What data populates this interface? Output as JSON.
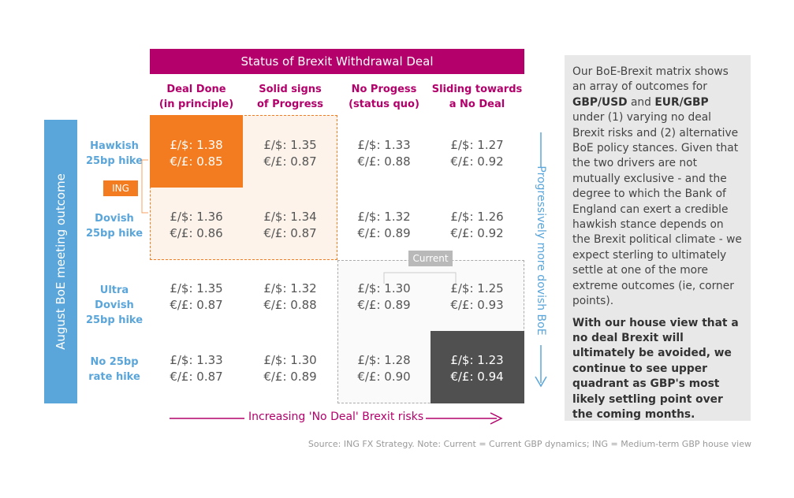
{
  "header": {
    "title": "Status of Brexit Withdrawal Deal"
  },
  "columns": [
    {
      "line1": "Deal Done",
      "line2": "(in principle)"
    },
    {
      "line1": "Solid signs",
      "line2": "of Progress"
    },
    {
      "line1": "No Progess",
      "line2": "(status quo)"
    },
    {
      "line1": "Sliding towards",
      "line2": "a No Deal"
    }
  ],
  "side_axis": {
    "label": "August BoE meeting outcome"
  },
  "rows": [
    {
      "line1": "Hawkish",
      "line2": "25bp hike"
    },
    {
      "line1": "Dovish",
      "line2": "25bp hike"
    },
    {
      "line1": "Ultra Dovish",
      "line2": "25bp hike"
    },
    {
      "line1": "No 25bp",
      "line2": "rate hike"
    }
  ],
  "chart_data": {
    "type": "table",
    "title": "Status of Brexit Withdrawal Deal",
    "column_labels": [
      "Deal Done (in principle)",
      "Solid signs of Progress",
      "No Progess (status quo)",
      "Sliding towards a No Deal"
    ],
    "row_labels": [
      "Hawkish 25bp hike",
      "Dovish 25bp hike",
      "Ultra Dovish 25bp hike",
      "No 25bp rate hike"
    ],
    "gbpusd_prefix": "£/$: ",
    "eurgbp_prefix": "€/£: ",
    "gbpusd": [
      [
        "1.38",
        "1.35",
        "1.33",
        "1.27"
      ],
      [
        "1.36",
        "1.34",
        "1.32",
        "1.26"
      ],
      [
        "1.35",
        "1.32",
        "1.30",
        "1.25"
      ],
      [
        "1.33",
        "1.30",
        "1.28",
        "1.23"
      ]
    ],
    "eurgbp": [
      [
        "0.85",
        "0.87",
        "0.88",
        "0.92"
      ],
      [
        "0.86",
        "0.87",
        "0.89",
        "0.92"
      ],
      [
        "0.87",
        "0.88",
        "0.89",
        "0.93"
      ],
      [
        "0.87",
        "0.89",
        "0.90",
        "0.94"
      ]
    ],
    "x_axis_label": "Increasing 'No Deal' Brexit risks",
    "y_axis_label": "August BoE meeting outcome",
    "right_axis_label": "Progressively more dovish BoE"
  },
  "markers": {
    "ing_label": "ING",
    "current_label": "Current"
  },
  "arrows": {
    "x_label": "Increasing 'No Deal' Brexit risks",
    "right_label": "Progressively more dovish BoE"
  },
  "commentary": {
    "p1_a": "Our BoE-Brexit matrix shows an array of outcomes for ",
    "p1_b": "GBP/USD",
    "p1_c": " and ",
    "p1_d": "EUR/GBP",
    "p1_e": " under (1) varying no deal Brexit risks and (2) alternative BoE policy stances. Given that the two drivers are not mutually exclusive - and the degree to which the Bank of England can exert a credible hawkish stance depends on the Brexit political climate - we expect sterling to ultimately settle at one of the more extreme outcomes (ie, corner points).",
    "p2": "With our house view that a no deal Brexit will ultimately be avoided, we continue to see upper quadrant as GBP's most likely settling point over the coming months."
  },
  "source": "Source: ING FX Strategy. Note: Current = Current GBP dynamics; ING = Medium-term GBP house view",
  "colors": {
    "magenta": "#b3006b",
    "blue": "#5aa5d9",
    "orange": "#f47c20",
    "dark": "#505050"
  }
}
